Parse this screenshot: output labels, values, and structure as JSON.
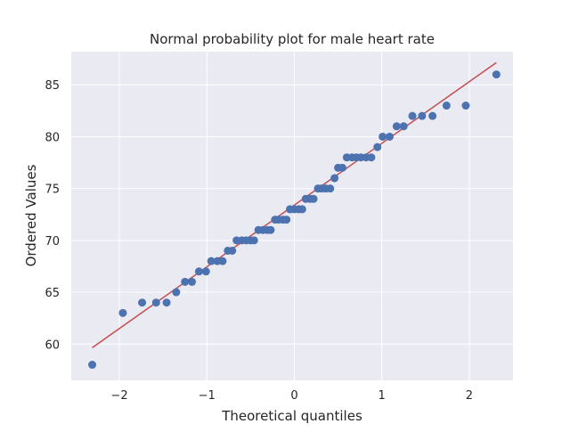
{
  "chart_data": {
    "type": "scatter",
    "title": "Normal probability plot for male heart rate",
    "xlabel": "Theoretical quantiles",
    "ylabel": "Ordered Values",
    "xlim": [
      -2.55,
      2.5
    ],
    "ylim": [
      56.5,
      88.2
    ],
    "xticks": [
      -2,
      -1,
      0,
      1,
      2
    ],
    "xtick_labels": [
      "−2",
      "−1",
      "0",
      "1",
      "2"
    ],
    "yticks": [
      60,
      65,
      70,
      75,
      80,
      85
    ],
    "ytick_labels": [
      "60",
      "65",
      "70",
      "75",
      "80",
      "85"
    ],
    "grid": true,
    "background": "#EAEAF2",
    "grid_color": "#FFFFFF",
    "point_color": "#4C72B0",
    "line_color": "#C44E52",
    "points": [
      {
        "x": -2.31,
        "y": 58
      },
      {
        "x": -1.96,
        "y": 63
      },
      {
        "x": -1.74,
        "y": 64
      },
      {
        "x": -1.58,
        "y": 64
      },
      {
        "x": -1.46,
        "y": 64
      },
      {
        "x": -1.35,
        "y": 65
      },
      {
        "x": -1.25,
        "y": 66
      },
      {
        "x": -1.17,
        "y": 66
      },
      {
        "x": -1.09,
        "y": 67
      },
      {
        "x": -1.01,
        "y": 67
      },
      {
        "x": -0.95,
        "y": 68
      },
      {
        "x": -0.88,
        "y": 68
      },
      {
        "x": -0.82,
        "y": 68
      },
      {
        "x": -0.76,
        "y": 69
      },
      {
        "x": -0.71,
        "y": 69
      },
      {
        "x": -0.66,
        "y": 70
      },
      {
        "x": -0.6,
        "y": 70
      },
      {
        "x": -0.55,
        "y": 70
      },
      {
        "x": -0.5,
        "y": 70
      },
      {
        "x": -0.46,
        "y": 70
      },
      {
        "x": -0.41,
        "y": 71
      },
      {
        "x": -0.36,
        "y": 71
      },
      {
        "x": -0.31,
        "y": 71
      },
      {
        "x": -0.27,
        "y": 71
      },
      {
        "x": -0.22,
        "y": 72
      },
      {
        "x": -0.18,
        "y": 72
      },
      {
        "x": -0.13,
        "y": 72
      },
      {
        "x": -0.09,
        "y": 72
      },
      {
        "x": -0.05,
        "y": 73
      },
      {
        "x": 0.0,
        "y": 73
      },
      {
        "x": 0.05,
        "y": 73
      },
      {
        "x": 0.09,
        "y": 73
      },
      {
        "x": 0.13,
        "y": 74
      },
      {
        "x": 0.18,
        "y": 74
      },
      {
        "x": 0.22,
        "y": 74
      },
      {
        "x": 0.27,
        "y": 75
      },
      {
        "x": 0.31,
        "y": 75
      },
      {
        "x": 0.36,
        "y": 75
      },
      {
        "x": 0.41,
        "y": 75
      },
      {
        "x": 0.46,
        "y": 76
      },
      {
        "x": 0.5,
        "y": 77
      },
      {
        "x": 0.55,
        "y": 77
      },
      {
        "x": 0.6,
        "y": 78
      },
      {
        "x": 0.66,
        "y": 78
      },
      {
        "x": 0.71,
        "y": 78
      },
      {
        "x": 0.76,
        "y": 78
      },
      {
        "x": 0.82,
        "y": 78
      },
      {
        "x": 0.88,
        "y": 78
      },
      {
        "x": 0.95,
        "y": 79
      },
      {
        "x": 1.01,
        "y": 80
      },
      {
        "x": 1.09,
        "y": 80
      },
      {
        "x": 1.17,
        "y": 81
      },
      {
        "x": 1.25,
        "y": 81
      },
      {
        "x": 1.35,
        "y": 82
      },
      {
        "x": 1.46,
        "y": 82
      },
      {
        "x": 1.58,
        "y": 82
      },
      {
        "x": 1.74,
        "y": 83
      },
      {
        "x": 1.96,
        "y": 83
      },
      {
        "x": 2.31,
        "y": 86
      }
    ],
    "fit_line": {
      "x": [
        -2.31,
        2.31
      ],
      "y": [
        59.65,
        87.15
      ]
    }
  }
}
